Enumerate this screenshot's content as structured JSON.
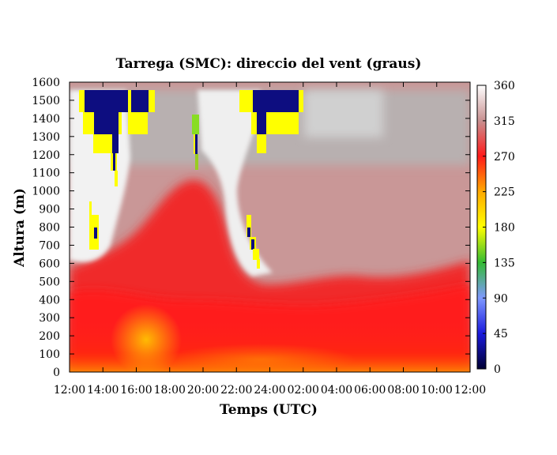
{
  "chart_data": {
    "type": "heatmap",
    "title": "Tarrega (SMC): direccio del vent (graus)",
    "xlabel": "Temps (UTC)",
    "ylabel": "Altura (m)",
    "xlim": [
      0,
      24
    ],
    "ylim": [
      0,
      1600
    ],
    "x_tick_labels": [
      "12:00",
      "14:00",
      "16:00",
      "18:00",
      "20:00",
      "22:00",
      "24:00",
      "02:00",
      "04:00",
      "06:00",
      "08:00",
      "10:00",
      "12:00"
    ],
    "y_ticks": [
      0,
      100,
      200,
      300,
      400,
      500,
      600,
      700,
      800,
      900,
      1000,
      1100,
      1200,
      1300,
      1400,
      1500,
      1600
    ],
    "colorbar": {
      "range": [
        0,
        360
      ],
      "ticks": [
        0,
        45,
        90,
        135,
        180,
        225,
        270,
        315,
        360
      ],
      "colors": [
        {
          "value": 0,
          "color": "#000033"
        },
        {
          "value": 45,
          "color": "#1a1add"
        },
        {
          "value": 90,
          "color": "#7f99ff"
        },
        {
          "value": 135,
          "color": "#33bb33"
        },
        {
          "value": 180,
          "color": "#ffff00"
        },
        {
          "value": 225,
          "color": "#ffaa00"
        },
        {
          "value": 270,
          "color": "#ff1a1a"
        },
        {
          "value": 315,
          "color": "#c89090"
        },
        {
          "value": 360,
          "color": "#ffffff"
        }
      ]
    }
  }
}
